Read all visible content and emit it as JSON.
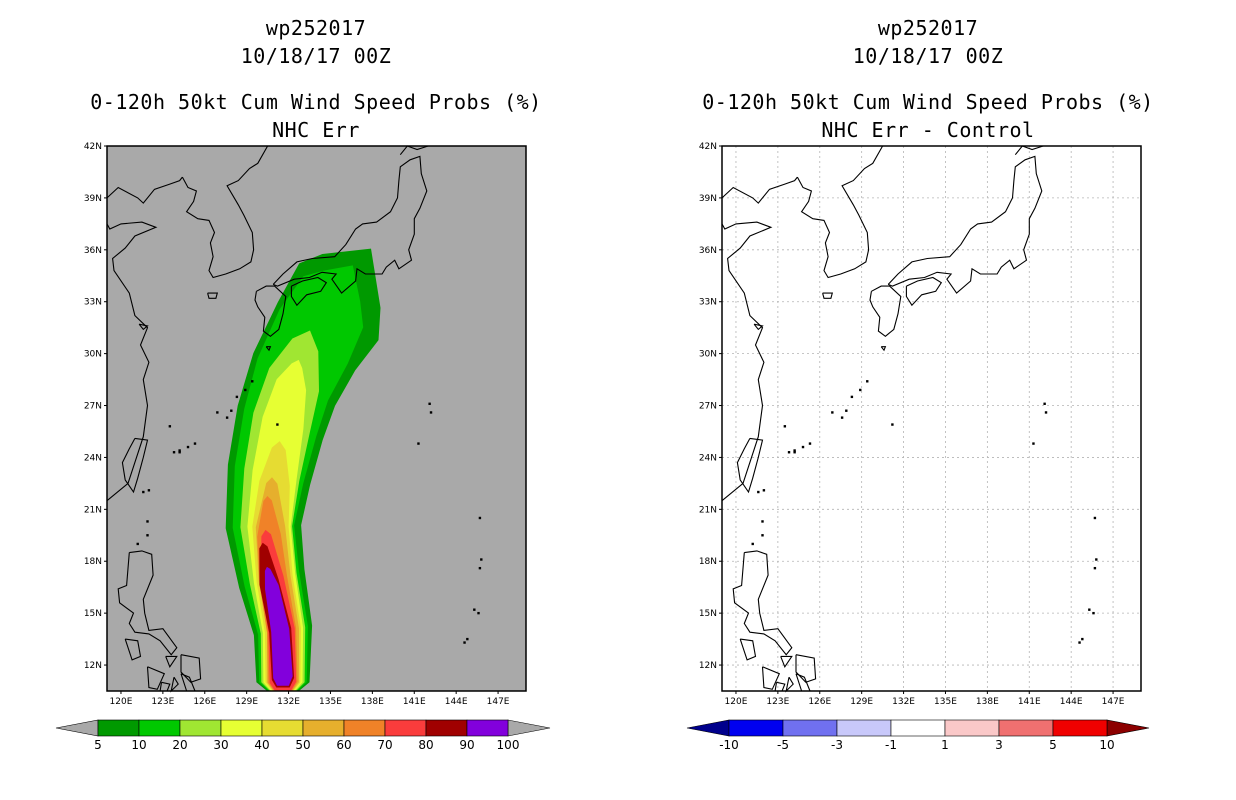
{
  "panels": [
    {
      "title_line1": "wp252017",
      "title_line2": "10/18/17 00Z",
      "title_line3": "0-120h 50kt Cum Wind Speed Probs (%)",
      "subtitle": "NHC Err"
    },
    {
      "title_line1": "wp252017",
      "title_line2": "10/18/17 00Z",
      "title_line3": "0-120h 50kt Cum Wind Speed Probs (%)",
      "subtitle": "NHC Err - Control"
    }
  ],
  "chart_data": [
    {
      "type": "heatmap",
      "title": "0-120h 50kt Cum Wind Speed Probs (%)",
      "subtitle": "NHC Err",
      "xlim": [
        119,
        149
      ],
      "ylim": [
        10.5,
        42
      ],
      "xticks": [
        "120E",
        "123E",
        "126E",
        "129E",
        "132E",
        "135E",
        "138E",
        "141E",
        "144E",
        "147E"
      ],
      "yticks": [
        "42N",
        "39N",
        "36N",
        "33N",
        "30N",
        "27N",
        "24N",
        "21N",
        "18N",
        "15N",
        "12N"
      ],
      "xtick_values": [
        120,
        123,
        126,
        129,
        132,
        135,
        138,
        141,
        144,
        147
      ],
      "ytick_values": [
        42,
        39,
        36,
        33,
        30,
        27,
        24,
        21,
        18,
        15,
        12
      ],
      "colorbar": {
        "levels": [
          "5",
          "10",
          "20",
          "30",
          "40",
          "50",
          "60",
          "70",
          "80",
          "90",
          "100"
        ],
        "colors": [
          "#009900",
          "#00c800",
          "#a0e632",
          "#e6ff33",
          "#e6dc32",
          "#e6af2d",
          "#f08228",
          "#fa3c3c",
          "#a00000",
          "#8200dc"
        ]
      },
      "swath_levels": [
        {
          "min": 5,
          "color": "#009900",
          "center": [
            [
              131.6,
              11
            ],
            [
              131.6,
              14
            ],
            [
              130.8,
              17
            ],
            [
              130.2,
              20
            ],
            [
              130.6,
              23
            ],
            [
              131.4,
              26
            ],
            [
              132.4,
              28.5
            ],
            [
              134,
              31
            ],
            [
              135.6,
              33
            ],
            [
              136.5,
              34.2
            ]
          ],
          "half_width": [
            1.9,
            2.1,
            2.4,
            2.7,
            3.0,
            3.2,
            3.3,
            3.4,
            3.6,
            2.6
          ]
        },
        {
          "min": 10,
          "color": "#00c800",
          "center": [
            [
              131.6,
              11
            ],
            [
              131.6,
              14
            ],
            [
              130.8,
              17
            ],
            [
              130.2,
              20
            ],
            [
              130.6,
              23
            ],
            [
              131.4,
              26
            ],
            [
              132.3,
              28.5
            ],
            [
              133.8,
              31
            ],
            [
              135.2,
              33
            ],
            [
              135.8,
              33.9
            ]
          ],
          "half_width": [
            1.7,
            1.8,
            2.0,
            2.2,
            2.5,
            2.7,
            2.8,
            2.9,
            2.6,
            1.6
          ]
        },
        {
          "min": 20,
          "color": "#a0e632",
          "center": [
            [
              131.6,
              11
            ],
            [
              131.6,
              14
            ],
            [
              130.9,
              17
            ],
            [
              130.4,
              20
            ],
            [
              130.8,
              23
            ],
            [
              131.5,
              26
            ],
            [
              132.4,
              28.5
            ],
            [
              133.2,
              30.5
            ]
          ],
          "half_width": [
            1.55,
            1.6,
            1.7,
            1.85,
            2.0,
            2.1,
            1.9,
            1.0
          ]
        },
        {
          "min": 30,
          "color": "#e6ff33",
          "center": [
            [
              131.6,
              11
            ],
            [
              131.6,
              14
            ],
            [
              131.0,
              17
            ],
            [
              130.6,
              20
            ],
            [
              131.0,
              23
            ],
            [
              131.6,
              26
            ],
            [
              132.2,
              28.2
            ],
            [
              132.6,
              29.3
            ]
          ],
          "half_width": [
            1.4,
            1.45,
            1.5,
            1.55,
            1.6,
            1.5,
            1.1,
            0.4
          ]
        },
        {
          "min": 40,
          "color": "#e6dc32",
          "center": [
            [
              131.6,
              11
            ],
            [
              131.6,
              14
            ],
            [
              131.0,
              17
            ],
            [
              130.7,
              20
            ],
            [
              131.0,
              22.5
            ],
            [
              131.3,
              24.5
            ]
          ],
          "half_width": [
            1.25,
            1.3,
            1.3,
            1.3,
            1.1,
            0.5
          ]
        },
        {
          "min": 50,
          "color": "#e6af2d",
          "center": [
            [
              131.6,
              11
            ],
            [
              131.6,
              14
            ],
            [
              131.0,
              17
            ],
            [
              130.7,
              20
            ],
            [
              130.8,
              22.5
            ]
          ],
          "half_width": [
            1.15,
            1.15,
            1.15,
            1.05,
            0.4
          ]
        },
        {
          "min": 60,
          "color": "#f08228",
          "center": [
            [
              131.6,
              11
            ],
            [
              131.5,
              14
            ],
            [
              130.9,
              17
            ],
            [
              130.6,
              19.5
            ],
            [
              130.5,
              21.5
            ]
          ],
          "half_width": [
            1.05,
            1.05,
            1.0,
            0.85,
            0.3
          ]
        },
        {
          "min": 70,
          "color": "#fa3c3c",
          "center": [
            [
              131.6,
              11
            ],
            [
              131.5,
              14
            ],
            [
              130.8,
              17
            ],
            [
              130.4,
              19.5
            ]
          ],
          "half_width": [
            0.95,
            0.95,
            0.85,
            0.35
          ]
        },
        {
          "min": 80,
          "color": "#a00000",
          "center": [
            [
              131.6,
              11.2
            ],
            [
              131.4,
              14
            ],
            [
              130.6,
              16.8
            ],
            [
              130.2,
              18.8
            ]
          ],
          "half_width": [
            0.8,
            0.8,
            0.7,
            0.3
          ]
        },
        {
          "min": 90,
          "color": "#8200dc",
          "center": [
            [
              131.6,
              11.3
            ],
            [
              131.4,
              14
            ],
            [
              130.8,
              16.5
            ],
            [
              130.5,
              17.5
            ]
          ],
          "half_width": [
            0.7,
            0.65,
            0.5,
            0.2
          ]
        }
      ]
    },
    {
      "type": "heatmap",
      "title": "0-120h 50kt Cum Wind Speed Probs (%)",
      "subtitle": "NHC Err - Control",
      "xlim": [
        119,
        149
      ],
      "ylim": [
        10.5,
        42
      ],
      "xticks": [
        "120E",
        "123E",
        "126E",
        "129E",
        "132E",
        "135E",
        "138E",
        "141E",
        "144E",
        "147E"
      ],
      "yticks": [
        "42N",
        "39N",
        "36N",
        "33N",
        "30N",
        "27N",
        "24N",
        "21N",
        "18N",
        "15N",
        "12N"
      ],
      "xtick_values": [
        120,
        123,
        126,
        129,
        132,
        135,
        138,
        141,
        144,
        147
      ],
      "ytick_values": [
        42,
        39,
        36,
        33,
        30,
        27,
        24,
        21,
        18,
        15,
        12
      ],
      "grid": true,
      "colorbar": {
        "levels": [
          "-10",
          "-5",
          "-3",
          "-1",
          "1",
          "3",
          "5",
          "10"
        ],
        "colors": [
          "#00008c",
          "#0000f0",
          "#7070f0",
          "#c8c8fa",
          "#ffffff",
          "#fac8c8",
          "#f07070",
          "#f00000",
          "#8c0000"
        ]
      },
      "field": "all values between -1 and 1 (white)"
    }
  ],
  "colors": {
    "ocean_background": "#a9a9a9",
    "land_outline": "#000000",
    "grid": "#b4b4b4"
  }
}
